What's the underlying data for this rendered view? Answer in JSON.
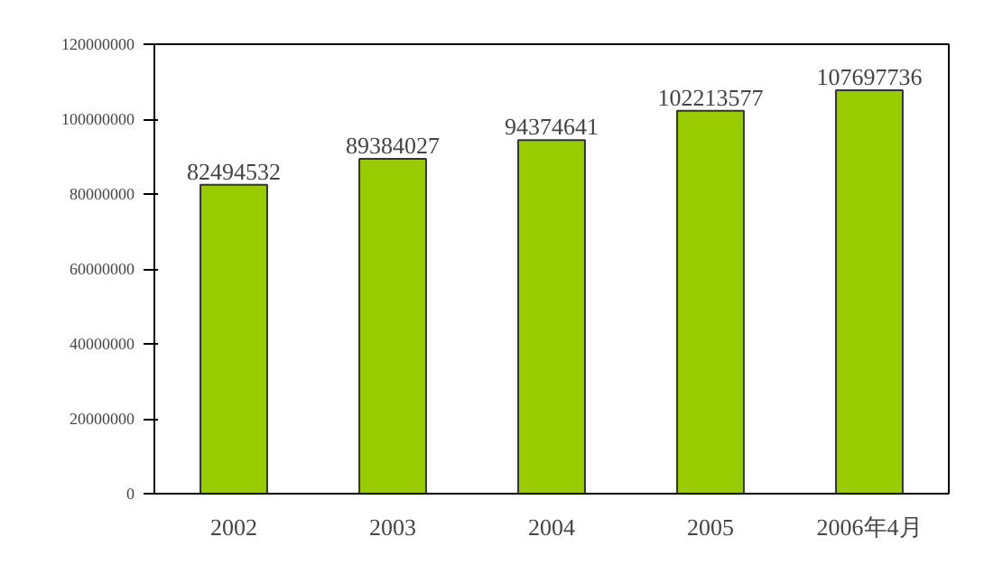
{
  "chart_data": {
    "type": "bar",
    "categories": [
      "2002",
      "2003",
      "2004",
      "2005",
      "2006年4月"
    ],
    "values": [
      82494532,
      89384027,
      94374641,
      102213577,
      107697736
    ],
    "color": "#99cc00",
    "ylim": [
      0,
      120000000
    ],
    "yticks": [
      0,
      20000000,
      40000000,
      60000000,
      80000000,
      100000000,
      120000000
    ],
    "grid": false,
    "data_labels": true
  }
}
